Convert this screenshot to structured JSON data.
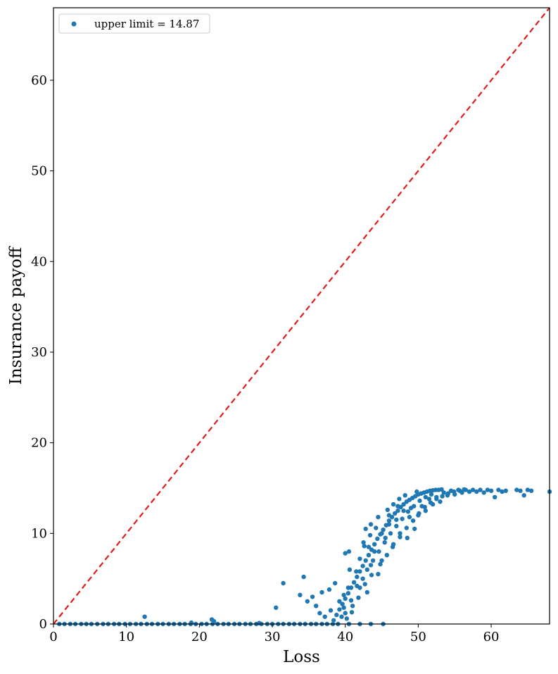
{
  "chart_data": {
    "type": "scatter",
    "xlabel": "Loss",
    "ylabel": "Insurance payoff",
    "xlim": [
      0,
      68
    ],
    "ylim": [
      0,
      68
    ],
    "x_ticks": [
      0,
      10,
      20,
      30,
      40,
      50,
      60
    ],
    "y_ticks": [
      0,
      10,
      20,
      30,
      40,
      50,
      60
    ],
    "grid": false,
    "legend_position": "top-left",
    "colors": {
      "points": "#1f77b4",
      "reference_line": "#e31a1c"
    },
    "reference_line": {
      "style": "dashed",
      "from": [
        0,
        0
      ],
      "to": [
        68,
        68
      ]
    },
    "series": [
      {
        "name": "upper limit = 14.87",
        "points": [
          [
            0.8,
            0
          ],
          [
            1.5,
            0
          ],
          [
            2.3,
            0
          ],
          [
            3.0,
            0
          ],
          [
            3.8,
            0
          ],
          [
            4.5,
            0
          ],
          [
            5.2,
            0
          ],
          [
            6.0,
            0
          ],
          [
            6.8,
            0
          ],
          [
            7.5,
            0
          ],
          [
            8.3,
            0
          ],
          [
            9.0,
            0
          ],
          [
            9.8,
            0
          ],
          [
            10.5,
            0
          ],
          [
            11.3,
            0
          ],
          [
            12.0,
            0
          ],
          [
            12.8,
            0
          ],
          [
            13.5,
            0
          ],
          [
            14.3,
            0
          ],
          [
            15.0,
            0
          ],
          [
            15.8,
            0
          ],
          [
            16.5,
            0
          ],
          [
            17.3,
            0
          ],
          [
            18.0,
            0
          ],
          [
            18.8,
            0
          ],
          [
            19.5,
            0
          ],
          [
            20.3,
            0
          ],
          [
            21.0,
            0
          ],
          [
            21.8,
            0
          ],
          [
            22.5,
            0
          ],
          [
            23.3,
            0
          ],
          [
            24.0,
            0
          ],
          [
            24.8,
            0
          ],
          [
            25.5,
            0
          ],
          [
            26.3,
            0
          ],
          [
            27.0,
            0
          ],
          [
            27.8,
            0
          ],
          [
            28.5,
            0
          ],
          [
            29.3,
            0
          ],
          [
            30.0,
            0
          ],
          [
            30.8,
            0
          ],
          [
            31.5,
            0
          ],
          [
            32.3,
            0
          ],
          [
            33.0,
            0
          ],
          [
            33.8,
            0
          ],
          [
            34.5,
            0
          ],
          [
            35.3,
            0
          ],
          [
            36.0,
            0
          ],
          [
            36.8,
            0
          ],
          [
            37.5,
            0
          ],
          [
            38.3,
            0
          ],
          [
            39.0,
            0
          ],
          [
            40.5,
            0
          ],
          [
            42.0,
            0
          ],
          [
            43.5,
            0
          ],
          [
            45.2,
            0
          ],
          [
            12.5,
            0.8
          ],
          [
            18.9,
            0.15
          ],
          [
            21.7,
            0.5
          ],
          [
            22.0,
            0.3
          ],
          [
            28.2,
            0.1
          ],
          [
            30.5,
            1.8
          ],
          [
            31.5,
            4.5
          ],
          [
            34.3,
            5.2
          ],
          [
            33.8,
            3.2
          ],
          [
            34.8,
            2.5
          ],
          [
            35.5,
            3.0
          ],
          [
            36.0,
            2.0
          ],
          [
            36.5,
            1.2
          ],
          [
            37.2,
            0.8
          ],
          [
            37.8,
            3.8
          ],
          [
            38.0,
            1.5
          ],
          [
            36.8,
            3.5
          ],
          [
            38.6,
            4.5
          ],
          [
            39.2,
            2.5
          ],
          [
            39.5,
            0.8
          ],
          [
            40.0,
            1.2
          ],
          [
            39.8,
            3.2
          ],
          [
            40.4,
            4.0
          ],
          [
            41.0,
            2.0
          ],
          [
            40.6,
            6.0
          ],
          [
            40.0,
            7.8
          ],
          [
            40.5,
            8.0
          ],
          [
            41.5,
            5.8
          ],
          [
            42.0,
            7.2
          ],
          [
            42.5,
            9.0
          ],
          [
            42.0,
            4.0
          ],
          [
            43.0,
            3.5
          ],
          [
            43.5,
            6.5
          ],
          [
            43.2,
            8.5
          ],
          [
            42.8,
            10.5
          ],
          [
            43.5,
            11.0
          ],
          [
            44.0,
            8.0
          ],
          [
            44.5,
            5.5
          ],
          [
            45.0,
            10.0
          ],
          [
            44.5,
            11.8
          ],
          [
            45.0,
            7.0
          ],
          [
            45.5,
            9.5
          ],
          [
            46.0,
            11.0
          ],
          [
            46.5,
            8.5
          ],
          [
            46.0,
            12.0
          ],
          [
            47.0,
            11.5
          ],
          [
            47.5,
            10.0
          ],
          [
            48.0,
            12.5
          ],
          [
            48.5,
            9.5
          ],
          [
            47.2,
            13.0
          ],
          [
            48.8,
            11.8
          ],
          [
            49.0,
            12.8
          ],
          [
            49.5,
            10.5
          ],
          [
            50.0,
            12.0
          ],
          [
            50.5,
            13.0
          ],
          [
            51.0,
            12.5
          ],
          [
            51.5,
            13.8
          ],
          [
            52.0,
            13.2
          ],
          [
            52.5,
            14.0
          ],
          [
            53.0,
            13.5
          ],
          [
            53.5,
            14.5
          ],
          [
            54.0,
            14.2
          ],
          [
            54.5,
            14.7
          ],
          [
            55.0,
            14.3
          ],
          [
            55.5,
            14.8
          ],
          [
            56.0,
            14.5
          ],
          [
            56.5,
            14.8
          ],
          [
            57.0,
            14.6
          ],
          [
            57.5,
            14.8
          ],
          [
            58.0,
            14.6
          ],
          [
            58.5,
            14.8
          ],
          [
            59.0,
            14.5
          ],
          [
            59.5,
            14.8
          ],
          [
            60.0,
            14.7
          ],
          [
            60.5,
            14.0
          ],
          [
            61.0,
            14.8
          ],
          [
            61.5,
            14.6
          ],
          [
            62.0,
            14.7
          ],
          [
            63.5,
            14.8
          ],
          [
            64.0,
            14.7
          ],
          [
            64.5,
            14.2
          ],
          [
            65.0,
            14.8
          ],
          [
            65.5,
            14.7
          ],
          [
            68.0,
            14.6
          ],
          [
            38.4,
            0.4
          ],
          [
            38.8,
            1.0
          ],
          [
            39.2,
            1.6
          ],
          [
            39.6,
            2.2
          ],
          [
            40.0,
            2.8
          ],
          [
            40.4,
            3.4
          ],
          [
            40.8,
            4.0
          ],
          [
            41.2,
            4.6
          ],
          [
            41.6,
            5.2
          ],
          [
            42.0,
            5.8
          ],
          [
            42.4,
            6.4
          ],
          [
            42.8,
            7.0
          ],
          [
            43.2,
            7.6
          ],
          [
            43.6,
            8.2
          ],
          [
            44.0,
            8.8
          ],
          [
            44.4,
            9.4
          ],
          [
            44.8,
            9.9
          ],
          [
            45.2,
            10.4
          ],
          [
            45.6,
            10.9
          ],
          [
            46.0,
            11.4
          ],
          [
            46.4,
            11.8
          ],
          [
            46.8,
            12.2
          ],
          [
            47.2,
            12.5
          ],
          [
            47.6,
            12.9
          ],
          [
            48.0,
            13.2
          ],
          [
            48.4,
            13.5
          ],
          [
            48.8,
            13.7
          ],
          [
            49.2,
            13.9
          ],
          [
            49.6,
            14.1
          ],
          [
            50.0,
            14.3
          ],
          [
            50.4,
            14.4
          ],
          [
            50.8,
            14.5
          ],
          [
            51.2,
            14.6
          ],
          [
            51.6,
            14.7
          ],
          [
            52.0,
            14.75
          ],
          [
            52.4,
            14.8
          ],
          [
            52.8,
            14.8
          ],
          [
            53.2,
            14.85
          ],
          [
            39.8,
            1.8
          ],
          [
            40.8,
            2.6
          ],
          [
            41.6,
            4.2
          ],
          [
            42.4,
            5.0
          ],
          [
            43.0,
            6.0
          ],
          [
            43.8,
            7.0
          ],
          [
            44.6,
            8.0
          ],
          [
            45.4,
            9.0
          ],
          [
            46.2,
            10.0
          ],
          [
            47.0,
            10.8
          ],
          [
            47.8,
            11.6
          ],
          [
            48.6,
            12.4
          ],
          [
            49.4,
            13.0
          ],
          [
            50.2,
            13.6
          ],
          [
            51.0,
            14.0
          ],
          [
            51.8,
            14.3
          ],
          [
            42.6,
            8.6
          ],
          [
            43.4,
            9.8
          ],
          [
            44.2,
            10.6
          ],
          [
            45.8,
            12.6
          ],
          [
            46.6,
            13.2
          ],
          [
            47.4,
            13.8
          ],
          [
            48.2,
            14.2
          ],
          [
            49.8,
            14.6
          ],
          [
            40.2,
            0.6
          ],
          [
            40.9,
            1.3
          ],
          [
            41.8,
            2.9
          ],
          [
            42.7,
            4.4
          ],
          [
            43.6,
            5.4
          ],
          [
            44.8,
            6.6
          ],
          [
            45.7,
            7.6
          ],
          [
            46.6,
            8.8
          ],
          [
            47.5,
            9.6
          ],
          [
            48.4,
            10.6
          ],
          [
            49.3,
            11.4
          ],
          [
            50.1,
            12.2
          ],
          [
            50.9,
            12.9
          ],
          [
            51.7,
            13.4
          ],
          [
            52.5,
            13.8
          ],
          [
            53.3,
            14.1
          ],
          [
            54.1,
            14.4
          ],
          [
            54.9,
            14.6
          ],
          [
            55.7,
            14.7
          ],
          [
            56.3,
            14.85
          ]
        ]
      }
    ]
  }
}
